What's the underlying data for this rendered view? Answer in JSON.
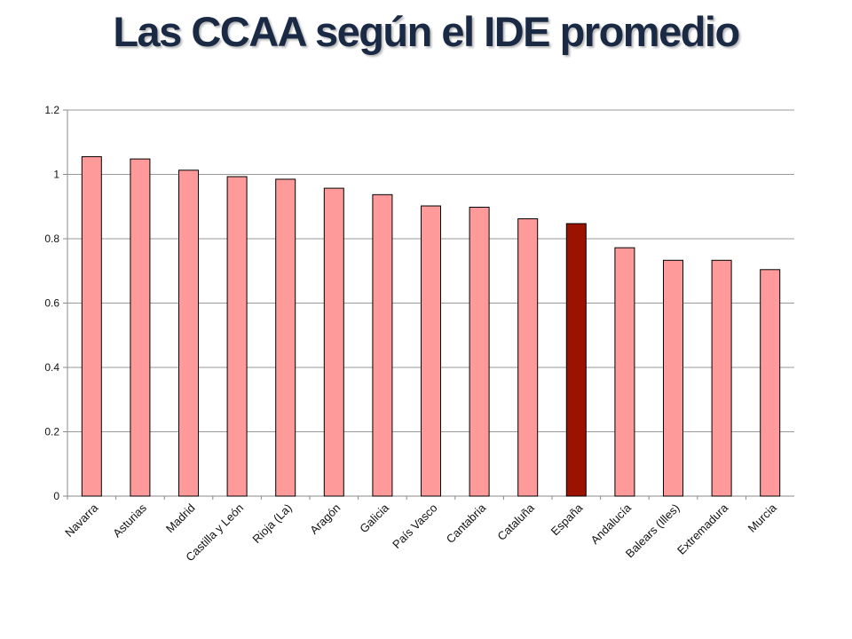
{
  "title": "Las CCAA según el IDE promedio",
  "colors": {
    "bar": "#ff9a9a",
    "highlight": "#9b1200",
    "gridline": "#9a9a9a",
    "title": "#1a2a44"
  },
  "chart_data": {
    "type": "bar",
    "title": "Las CCAA según el IDE promedio",
    "categories": [
      "Navarra",
      "Asturias",
      "Madrid",
      "Castilla y León",
      "Rioja (La)",
      "Aragón",
      "Galicia",
      "País Vasco",
      "Cantabria",
      "Cataluña",
      "España",
      "Andalucía",
      "Balears (Illes)",
      "Extremadura",
      "Murcia"
    ],
    "values": [
      1.055,
      1.048,
      1.013,
      0.993,
      0.985,
      0.957,
      0.937,
      0.902,
      0.898,
      0.862,
      0.847,
      0.772,
      0.733,
      0.733,
      0.704
    ],
    "highlight_category": "España",
    "ylim": [
      0,
      1.2
    ],
    "yticks": [
      "0",
      "0.2",
      "0.4",
      "0.6",
      "0.8",
      "1",
      "1.2"
    ],
    "grid": true,
    "legend": "none",
    "xlabel": "",
    "ylabel": ""
  }
}
